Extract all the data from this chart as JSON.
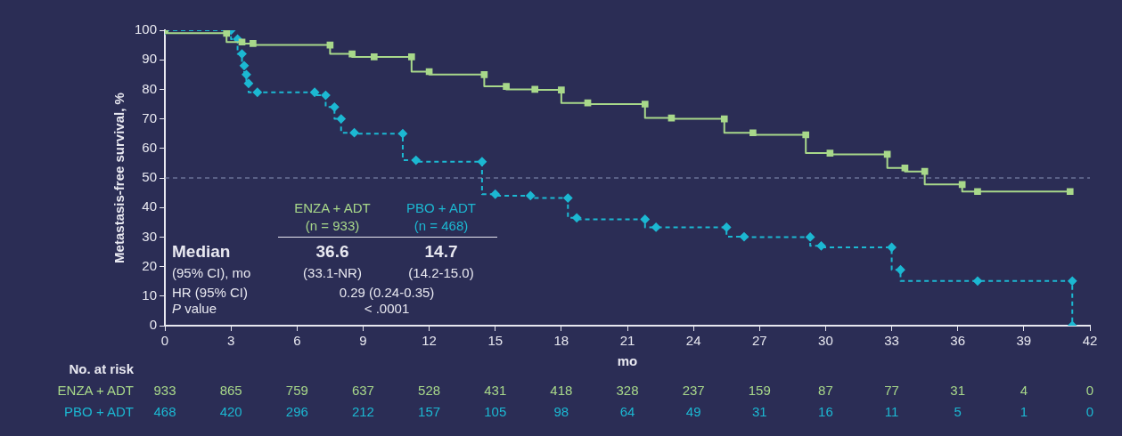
{
  "chart_data": {
    "type": "step",
    "xlabel": "mo",
    "ylabel": "Metastasis-free survival, %",
    "xlim": [
      0,
      42
    ],
    "xticks": [
      0,
      3,
      6,
      9,
      12,
      15,
      18,
      21,
      24,
      27,
      30,
      33,
      36,
      39,
      42
    ],
    "ylim": [
      0,
      100
    ],
    "yticks": [
      0,
      10,
      20,
      30,
      40,
      50,
      60,
      70,
      80,
      90,
      100
    ],
    "grid": false,
    "legend": false,
    "ref_lines": [
      {
        "axis": "y",
        "value": 50,
        "color": "#8a93b8",
        "line_style": "dashed"
      }
    ],
    "series": [
      {
        "name": "ENZA + ADT",
        "color": "#a8d88a",
        "marker": "square",
        "line_style": "solid",
        "x": [
          0,
          2.8,
          3.5,
          4,
          7.5,
          8.5,
          9.5,
          11.2,
          12,
          14.5,
          15.5,
          16.8,
          18,
          19.2,
          21.8,
          23,
          25.4,
          26.7,
          29.1,
          30.2,
          32.8,
          33.6,
          34.5,
          36.2,
          36.9,
          41.1
        ],
        "values": [
          100,
          99,
          96,
          95.5,
          95,
          92,
          91,
          91,
          86,
          85,
          81,
          80,
          79.8,
          75.4,
          75,
          70.3,
          70,
          65.3,
          64.6,
          58.4,
          58,
          53.4,
          52.2,
          47.8,
          45.4,
          45.4
        ]
      },
      {
        "name": "PBO + ADT",
        "color": "#1cb8d2",
        "marker": "diamond",
        "line_style": "dashed",
        "x": [
          0,
          3,
          3.3,
          3.5,
          3.6,
          3.7,
          3.8,
          4.2,
          6.8,
          7.3,
          7.7,
          8,
          8.6,
          10.8,
          11.4,
          14.4,
          15,
          16.6,
          18.3,
          18.7,
          21.8,
          22.3,
          25.5,
          26.3,
          29.3,
          29.8,
          33,
          33.4,
          36.9,
          41.2,
          41.2
        ],
        "values": [
          100,
          100,
          97,
          92,
          88,
          85,
          82,
          79,
          79,
          78,
          74,
          70,
          65.3,
          65,
          56,
          55.5,
          44.5,
          44,
          43.2,
          36.5,
          36,
          33.3,
          33.3,
          30.1,
          30,
          27,
          26.5,
          18.9,
          15.1,
          15.1,
          0
        ]
      }
    ],
    "annotations": [
      "(n = 933)",
      "(n = 468)",
      "Median",
      "36.6",
      "14.7",
      "(95% CI), mo",
      "(33.1-NR)",
      "(14.2-15.0)",
      "HR (95% CI)",
      "0.29 (0.24-0.35)",
      "P value",
      "< .0001",
      "No. at risk",
      "933 865 759 637 528 431 418 328 237 159 87 77 31 4 0",
      "468 420 296 212 157 105 98 64 49 31 16 11 5 1 0"
    ]
  }
}
